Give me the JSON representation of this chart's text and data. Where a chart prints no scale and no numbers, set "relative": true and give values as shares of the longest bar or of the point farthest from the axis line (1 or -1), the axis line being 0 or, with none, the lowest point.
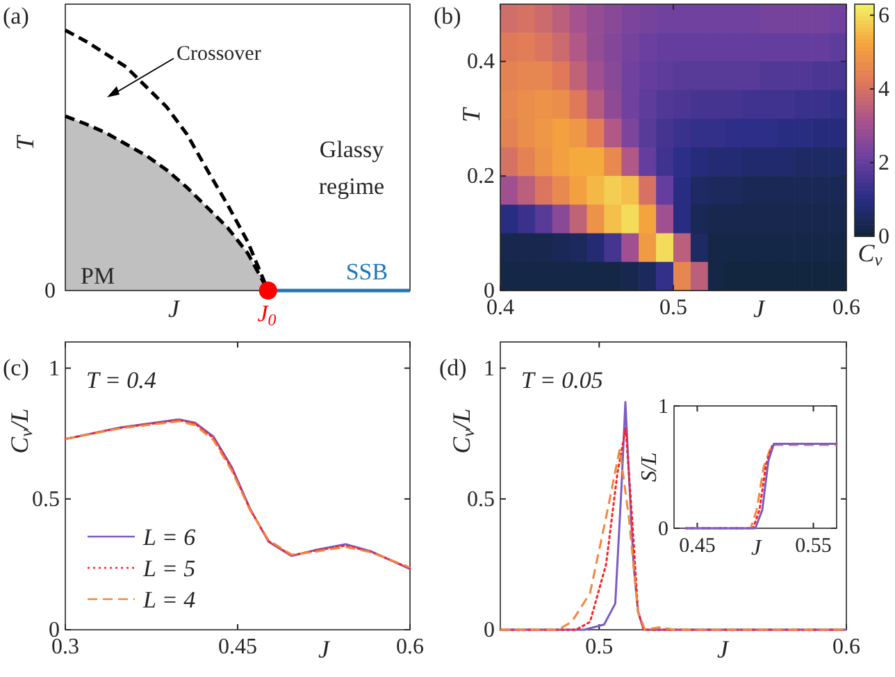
{
  "chart_data": [
    {
      "type": "line",
      "title": "(a)",
      "xlabel": "J",
      "ylabel": "T",
      "relative": true,
      "legend": false,
      "categories": [
        null,
        null,
        null,
        null,
        null,
        null,
        null,
        null,
        null,
        null,
        null,
        null,
        null,
        null,
        null,
        null,
        null,
        null
      ],
      "annotations": [
        "Crossover",
        "Glassy regime",
        "PM",
        "J$_{0}$",
        "0"
      ],
      "series": [
        {
          "color": "#000000",
          "line_style": "dashed",
          "values": [
            0.67,
            0.64,
            0.606,
            0.562,
            0.518,
            0.463,
            0.396,
            0.319,
            0.242,
            0.143,
            0,
            null,
            null,
            null,
            null,
            null,
            null,
            null
          ]
        },
        {
          "color": "#000000",
          "line_style": "dashed",
          "values": [
            1,
            0.958,
            0.909,
            0.859,
            0.782,
            0.705,
            0.6,
            0.463,
            0.33,
            0.187,
            0,
            null,
            null,
            null,
            null,
            null,
            null,
            null
          ]
        },
        {
          "name": "SSB",
          "color": "#1f77b4",
          "values": [
            null,
            null,
            null,
            null,
            null,
            null,
            null,
            null,
            null,
            null,
            0,
            0,
            0,
            0,
            0,
            0,
            0,
            0
          ]
        }
      ]
    },
    {
      "type": "heatmap",
      "title": "(b)",
      "xlabel": "J",
      "ylabel": "T",
      "clabel": "C$_{v}$",
      "xlim": [
        0.4,
        0.6
      ],
      "xticks": [
        0.4,
        0.5,
        0.6
      ],
      "ylim": [
        0,
        0.5
      ],
      "yticks": [
        0,
        0.2,
        0.4
      ],
      "clim": [
        0,
        6.3
      ],
      "cticks": [
        0,
        2,
        4,
        6
      ],
      "cells": [
        [
          3.9,
          4.0,
          3.8,
          3.5,
          3.1,
          2.8,
          2.6,
          2.4,
          2.3,
          2.2,
          2.2,
          2.2,
          2.2,
          2.2,
          2.2,
          2.3,
          2.3,
          2.3,
          2.3,
          2.2
        ],
        [
          4.2,
          4.3,
          4.1,
          3.8,
          3.3,
          2.8,
          2.5,
          2.3,
          2.1,
          2.0,
          2.0,
          2.0,
          2.0,
          2.0,
          2.0,
          2.0,
          2.0,
          2.0,
          2.0,
          1.9
        ],
        [
          4.4,
          4.5,
          4.5,
          4.2,
          3.6,
          3.0,
          2.6,
          2.2,
          2.0,
          1.9,
          1.8,
          1.8,
          1.8,
          1.8,
          1.8,
          1.7,
          1.7,
          1.7,
          1.6,
          1.6
        ],
        [
          4.5,
          4.7,
          4.8,
          4.7,
          4.2,
          3.4,
          2.7,
          2.2,
          1.9,
          1.7,
          1.6,
          1.5,
          1.5,
          1.5,
          1.4,
          1.4,
          1.4,
          1.3,
          1.3,
          1.2
        ],
        [
          4.4,
          4.7,
          4.9,
          5.1,
          4.9,
          4.3,
          3.3,
          2.4,
          1.8,
          1.5,
          1.3,
          1.2,
          1.2,
          1.1,
          1.1,
          1.1,
          1.0,
          1.0,
          0.9,
          0.9
        ],
        [
          4.0,
          4.4,
          4.8,
          5.1,
          5.3,
          5.3,
          4.6,
          3.3,
          2.0,
          1.4,
          1.1,
          0.9,
          0.8,
          0.8,
          0.7,
          0.7,
          0.7,
          0.6,
          0.6,
          0.6
        ],
        [
          3.0,
          3.5,
          4.1,
          4.6,
          5.1,
          5.5,
          5.8,
          5.6,
          4.0,
          2.0,
          1.0,
          0.6,
          0.5,
          0.5,
          0.4,
          0.4,
          0.4,
          0.4,
          0.4,
          0.4
        ],
        [
          1.0,
          1.3,
          1.8,
          2.6,
          3.6,
          4.8,
          5.6,
          6.0,
          5.2,
          3.0,
          1.0,
          0.4,
          0.3,
          0.3,
          0.3,
          0.3,
          0.3,
          0.3,
          0.3,
          0.3
        ],
        [
          0.3,
          0.3,
          0.3,
          0.4,
          0.5,
          0.8,
          1.5,
          3.0,
          5.0,
          6.0,
          3.5,
          0.6,
          0.2,
          0.2,
          0.2,
          0.2,
          0.2,
          0.2,
          0.2,
          0.2
        ],
        [
          0.2,
          0.2,
          0.2,
          0.2,
          0.2,
          0.2,
          0.2,
          0.3,
          0.5,
          1.2,
          4.5,
          3.5,
          0.2,
          0.1,
          0.1,
          0.1,
          0.1,
          0.1,
          0.1,
          0.1
        ]
      ]
    },
    {
      "type": "line",
      "title": "(c)",
      "xlabel": "J",
      "ylabel": "C$_{v}$/L",
      "xlim": [
        0.3,
        0.6
      ],
      "xticks": [
        0.3,
        0.45,
        0.6
      ],
      "ylim": [
        0,
        1.1
      ],
      "yticks": [
        0,
        0.5,
        1
      ],
      "legend": "bottom left",
      "annotations": [
        "T = 0.4"
      ],
      "series": [
        {
          "name": "L = 6",
          "color": "#7b5cc4",
          "line_style": "solid",
          "x": [
            0.3,
            0.348,
            0.399,
            0.413,
            0.429,
            0.445,
            0.461,
            0.477,
            0.497,
            0.517,
            0.544,
            0.566,
            0.6
          ],
          "values": [
            0.729,
            0.773,
            0.804,
            0.791,
            0.738,
            0.621,
            0.461,
            0.336,
            0.282,
            0.304,
            0.327,
            0.3,
            0.232
          ]
        },
        {
          "name": "L = 5",
          "color": "#ff2020",
          "line_style": "dotted",
          "x": [
            0.3,
            0.348,
            0.399,
            0.413,
            0.429,
            0.445,
            0.461,
            0.477,
            0.497,
            0.517,
            0.544,
            0.566,
            0.6
          ],
          "values": [
            0.729,
            0.772,
            0.801,
            0.788,
            0.733,
            0.615,
            0.458,
            0.338,
            0.284,
            0.302,
            0.322,
            0.298,
            0.235
          ]
        },
        {
          "name": "L = 4",
          "color": "#f0883e",
          "line_style": "dashed",
          "x": [
            0.3,
            0.348,
            0.399,
            0.413,
            0.429,
            0.445,
            0.461,
            0.477,
            0.497,
            0.517,
            0.544,
            0.566,
            0.6
          ],
          "values": [
            0.729,
            0.77,
            0.797,
            0.782,
            0.725,
            0.607,
            0.455,
            0.342,
            0.287,
            0.298,
            0.317,
            0.296,
            0.238
          ]
        }
      ]
    },
    {
      "type": "line",
      "title": "(d)",
      "xlabel": "J",
      "ylabel": "C$_{v}$/L",
      "xlim": [
        0.46,
        0.6
      ],
      "xticks": [
        0.5,
        0.6
      ],
      "ylim": [
        0,
        1.1
      ],
      "yticks": [
        0,
        0.5,
        1
      ],
      "annotations": [
        "T = 0.05"
      ],
      "series": [
        {
          "color": "#7b5cc4",
          "line_style": "solid",
          "x": [
            0.46,
            0.494,
            0.502,
            0.5065,
            0.509,
            0.5106,
            0.512,
            0.5139,
            0.5157,
            0.518,
            0.6
          ],
          "values": [
            0,
            0,
            0.02,
            0.1,
            0.54,
            0.87,
            0.6,
            0.25,
            0.07,
            0,
            0
          ]
        },
        {
          "color": "#ff2020",
          "line_style": "dotted",
          "x": [
            0.46,
            0.4907,
            0.4963,
            0.5028,
            0.5074,
            0.5107,
            0.5133,
            0.5157,
            0.518,
            0.6
          ],
          "values": [
            0,
            0,
            0.03,
            0.25,
            0.6,
            0.77,
            0.43,
            0.07,
            0,
            0
          ]
        },
        {
          "color": "#f0883e",
          "line_style": "dashed",
          "x": [
            0.46,
            0.4833,
            0.4889,
            0.4963,
            0.5028,
            0.5083,
            0.512,
            0.5157,
            0.5185,
            0.525,
            0.53,
            0.6
          ],
          "values": [
            0,
            0,
            0.03,
            0.14,
            0.43,
            0.69,
            0.43,
            0.07,
            0,
            0.01,
            0,
            0
          ]
        }
      ]
    },
    {
      "type": "line",
      "xlabel": "J",
      "ylabel": "S/L",
      "xlim": [
        0.43,
        0.57
      ],
      "xticks": [
        0.45,
        0.55
      ],
      "ylim": [
        0,
        1
      ],
      "yticks": [
        0,
        1
      ],
      "series": [
        {
          "color": "#f0883e",
          "line_style": "dashed",
          "x": [
            0.44,
            0.496,
            0.5012,
            0.5072,
            0.514,
            0.57
          ],
          "values": [
            0,
            0,
            0.15,
            0.5,
            0.68,
            0.68
          ]
        },
        {
          "color": "#ff2020",
          "line_style": "dotted",
          "x": [
            0.44,
            0.498,
            0.5036,
            0.5092,
            0.515,
            0.57
          ],
          "values": [
            0,
            0,
            0.15,
            0.52,
            0.69,
            0.69
          ]
        },
        {
          "color": "#7b5cc4",
          "line_style": "solid",
          "x": [
            0.44,
            0.5,
            0.506,
            0.5112,
            0.516,
            0.57
          ],
          "values": [
            0,
            0,
            0.15,
            0.55,
            0.69,
            0.69
          ]
        }
      ]
    }
  ]
}
